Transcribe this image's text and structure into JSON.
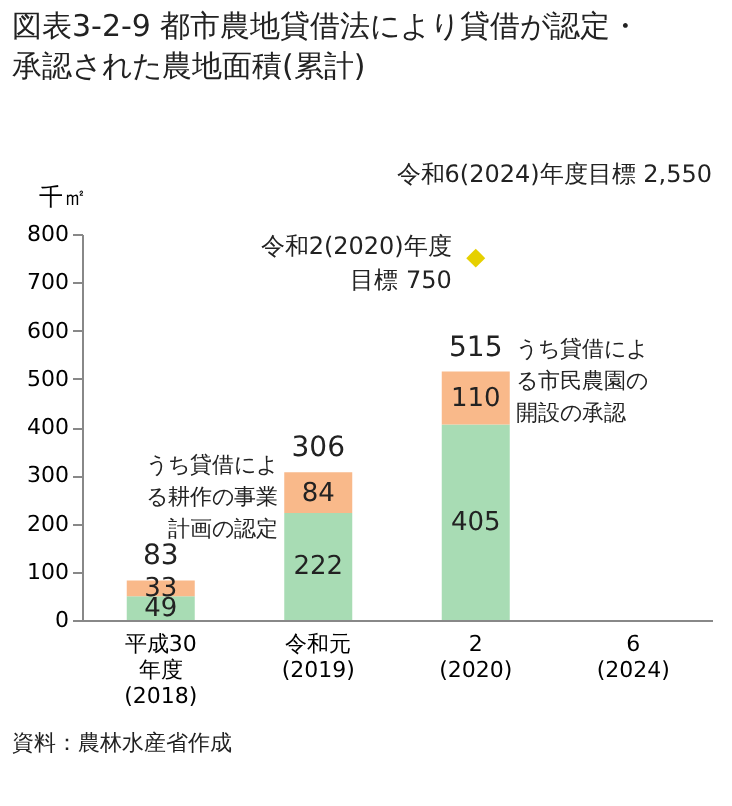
{
  "chart_data": {
    "type": "bar",
    "title": "図表3-2-9 都市農地貸借法により貸借が認定・承認された農地面積(累計)",
    "ylabel": "千㎡",
    "categories": [
      "平成30\n年度\n(2018)",
      "令和元\n\n(2019)",
      "2\n\n(2020)",
      "6\n\n(2024)"
    ],
    "stacked": true,
    "series": [
      {
        "name": "うち貸借による耕作の事業計画の認定",
        "color": "#a8dcb4",
        "values": [
          49,
          222,
          405,
          null
        ],
        "value_labels": [
          "49",
          "222",
          "405",
          null
        ]
      },
      {
        "name": "うち貸借による市民農園の開設の承認",
        "color": "#f9b98a",
        "values": [
          33,
          84,
          110,
          null
        ],
        "value_labels": [
          "33",
          "84",
          "110",
          null
        ]
      },
      {
        "type": "scatter",
        "color": "#e6d000",
        "marker": "diamond",
        "values": [
          null,
          null,
          750,
          null
        ]
      }
    ],
    "totals": [
      "83",
      "306",
      "515",
      null
    ],
    "ylim": [
      0,
      800
    ],
    "yticks": [
      0,
      100,
      200,
      300,
      400,
      500,
      600,
      700,
      800
    ],
    "grid": false,
    "annotations": [
      {
        "text": "令和2(2020)年度目標 750",
        "x": "2\n\n(2020)",
        "y": 750
      },
      "令和6(2024)年度目標 2,550",
      "資料：農林水産省作成"
    ]
  }
}
